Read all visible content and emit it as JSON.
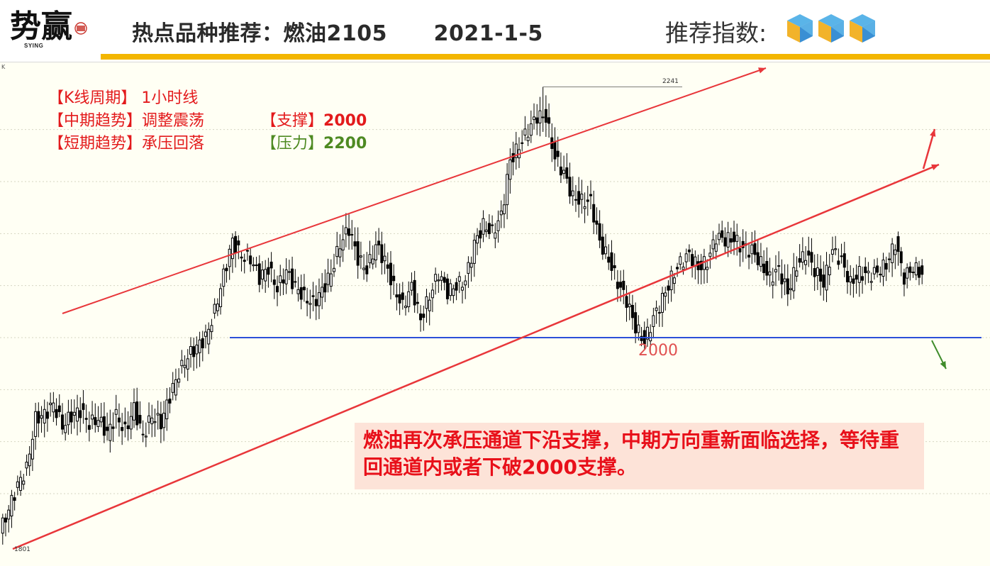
{
  "header": {
    "logo_text": "势赢",
    "logo_caption": "SYING",
    "title": "热点品种推荐：燃油2105      2021-1-5",
    "index_label": "推荐指数:",
    "index_icon": "cube-icon",
    "index_count": 3
  },
  "colors": {
    "accent_bar": "#f3b600",
    "channel": "#e8363a",
    "support_line": "#2c4fd8",
    "up_arrow": "#e8363a",
    "down_arrow": "#3f8c2a",
    "candle": "#000000"
  },
  "info": {
    "line1": "【K线周期】 1小时线",
    "line2": "【中期趋势】调整震荡",
    "line3": "【短期趋势】承压回落",
    "support_label": "【支撑】",
    "support_value": "2000",
    "pressure_label": "【压力】",
    "pressure_value": "2200"
  },
  "comment": "燃油再次承压通道下沿支撑，中期方向重新面临选择，等待重回通道内或者下破2000支撑。",
  "chart_data": {
    "type": "candlestick",
    "corner_label": "K",
    "ylim": [
      1790,
      2255
    ],
    "support_level": 2000,
    "support_label": "2000",
    "peak_label": "2241",
    "low_label": "1801",
    "high": 2241,
    "low": 1801,
    "close_trajectory": [
      1812,
      1835,
      1858,
      1874,
      1922,
      1926,
      1936,
      1915,
      1925,
      1930,
      1917,
      1922,
      1908,
      1925,
      1910,
      1932,
      1905,
      1925,
      1918,
      1944,
      1966,
      1982,
      1991,
      2000,
      2025,
      2060,
      2093,
      2078,
      2076,
      2058,
      2067,
      2047,
      2064,
      2049,
      2039,
      2033,
      2045,
      2062,
      2090,
      2105,
      2076,
      2065,
      2089,
      2074,
      2048,
      2030,
      2049,
      2017,
      2040,
      2062,
      2044,
      2050,
      2055,
      2090,
      2108,
      2101,
      2117,
      2170,
      2184,
      2199,
      2213,
      2212,
      2173,
      2158,
      2135,
      2131,
      2131,
      2092,
      2075,
      2053,
      2036,
      2010,
      1996,
      2019,
      2037,
      2057,
      2072,
      2080,
      2067,
      2073,
      2097,
      2094,
      2095,
      2085,
      2084,
      2071,
      2057,
      2066,
      2043,
      2069,
      2081,
      2065,
      2052,
      2084,
      2074,
      2052,
      2062,
      2060,
      2063,
      2070,
      2091,
      2058,
      2067
    ]
  }
}
